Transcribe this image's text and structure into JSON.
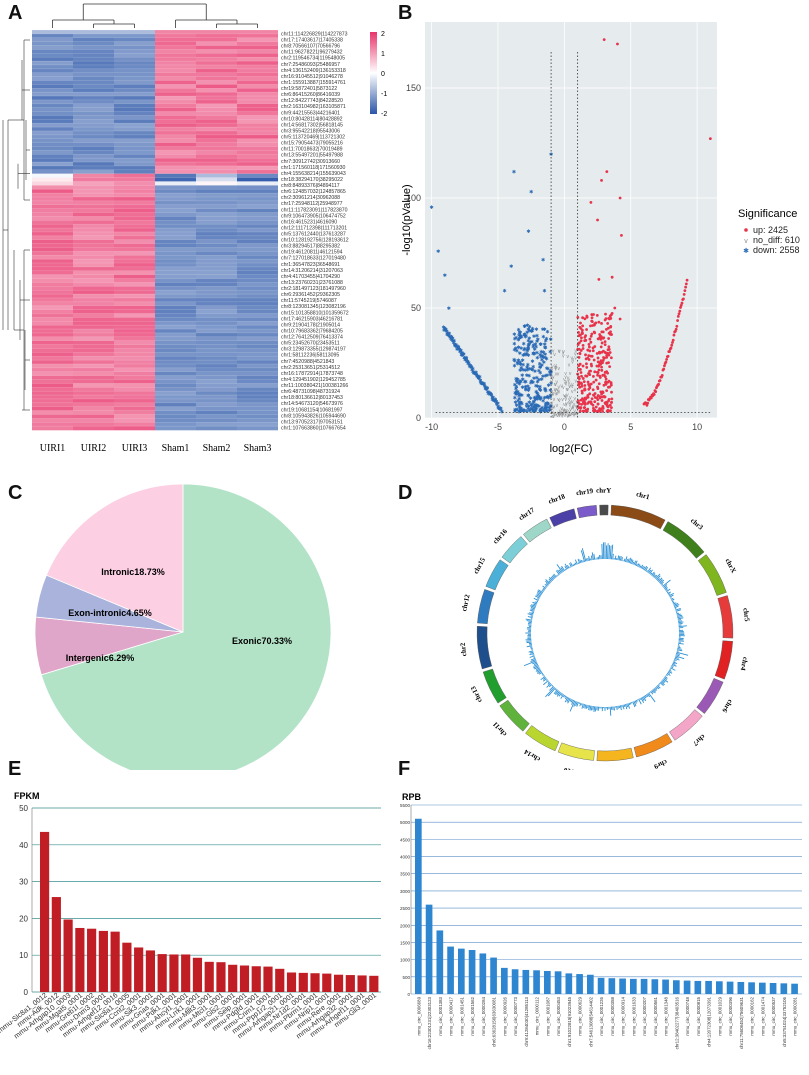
{
  "panel_labels": {
    "a": "A",
    "b": "B",
    "c": "C",
    "d": "D",
    "e": "E",
    "f": "F"
  },
  "colors": {
    "heat_low": "#2b56a8",
    "heat_mid": "#ffffff",
    "heat_high": "#e8336b",
    "volcano_up": "#e8334a",
    "volcano_nodiff": "#8c8c8c",
    "volcano_down": "#2a6ab5",
    "volcano_bg": "#e6ebed",
    "bar_e": "#c01d24",
    "bar_f": "#2e86d1",
    "grid_e": "#3a8f8f",
    "grid_f": "#5a8fc8"
  },
  "chart_data": [
    {
      "id": "A",
      "type": "heatmap",
      "title": "",
      "columns": [
        "UIRI1",
        "UIRI2",
        "UIRI3",
        "Sham1",
        "Sham2",
        "Sham3"
      ],
      "row_labels": [
        "chr11:114226829|114227873",
        "chr17:17403617|17405338",
        "chr8:70566107|70566796",
        "chr11:96278221|96279432",
        "chr2:119546734|119548005",
        "chr7:25486093|25486957",
        "chr4:136152409|136153318",
        "chr16:91045512|91046278",
        "chr1:155913887|155914761",
        "chr19:5872401|5873122",
        "chr6:86415260|86416039",
        "chr12:84227743|84228520",
        "chr2:163104982|163105871",
        "chr9:44215563|44216401",
        "chr10:80428114|80428892",
        "chr14:56817302|56818145",
        "chr3:95542218|95543006",
        "chr5:113720469|113721302",
        "chr15:79054473|79055216",
        "chr11:70018632|70019489",
        "chr13:55497201|55497988",
        "chr7:30912742|30913660",
        "chr1:171560118|171560930",
        "chr4:155638214|155639043",
        "chr18:38294170|38295022",
        "chr8:84893376|84894117",
        "chr6:124857032|124857865",
        "chr2:30961214|30962088",
        "chr17:25948112|25948977",
        "chr11:117823091|117823870",
        "chr9:106473905|106474752",
        "chr16:4615231|4616090",
        "chr12:111712398|111713201",
        "chr5:137612440|137613287",
        "chr10:128192756|128193612",
        "chr3:88294517|88295382",
        "chr19:46120811|46121594",
        "chr7:127018633|127019480",
        "chr1:36547823|36548691",
        "chr14:31206214|31207063",
        "chr4:41703455|41704290",
        "chr13:23760231|23761088",
        "chr2:181497123|181497960",
        "chr6:29361452|29362305",
        "chr11:5745219|5746087",
        "chr8:123081345|123082196",
        "chr15:101358810|101359672",
        "chr17:46215903|46216781",
        "chr9:21904178|21905014",
        "chr10:79683362|79684205",
        "chr12:76412509|76413374",
        "chr5:23452670|23453511",
        "chr3:129873355|129874197",
        "chr1:58112236|58113095",
        "chr7:4520988|4521843",
        "chr2:25313651|25314512",
        "chr16:17872914|17873748",
        "chr4:129451902|129452785",
        "chr11:100380421|100381266",
        "chr6:48731098|48731924",
        "chr18:80136612|80137453",
        "chr14:54673120|54673976",
        "chr19:10681154|10681997",
        "chr8:105943826|105944690",
        "chr13:97052317|97053151",
        "chr1:107663860|107667654"
      ],
      "cluster_a_rows": 37,
      "cluster_b_rows": 66,
      "scale": {
        "min": -2,
        "max": 2,
        "ticks": [
          "2",
          "1",
          "0",
          "-1",
          "-2"
        ]
      }
    },
    {
      "id": "B",
      "type": "scatter",
      "title": "",
      "xlabel": "log2(FC)",
      "ylabel": "-log10(pValue)",
      "xlim": [
        -10.5,
        11.5
      ],
      "ylim": [
        0,
        180
      ],
      "xticks": [
        "-10",
        "-5",
        "0",
        "5",
        "10"
      ],
      "yticks": [
        "0",
        "50",
        "100",
        "150"
      ],
      "legend_title": "Significance",
      "series": [
        {
          "name": "up: 2425",
          "group": "up"
        },
        {
          "name": "no_diff: 610",
          "group": "no_diff"
        },
        {
          "name": "down: 2558",
          "group": "down"
        }
      ],
      "thresholds": {
        "x": [
          -1,
          1
        ],
        "y": 2.5
      },
      "outliers_up": [
        [
          3,
          172
        ],
        [
          4,
          170
        ],
        [
          11,
          127
        ],
        [
          3.2,
          112
        ],
        [
          2.8,
          108
        ],
        [
          4.2,
          100
        ],
        [
          2,
          98
        ],
        [
          2.5,
          90
        ],
        [
          4.3,
          83
        ],
        [
          2.6,
          63
        ],
        [
          3.6,
          64
        ],
        [
          3.8,
          50
        ],
        [
          4.2,
          45
        ],
        [
          3.4,
          45
        ]
      ],
      "outliers_down": [
        [
          -1,
          120
        ],
        [
          -3.8,
          112
        ],
        [
          -2.5,
          103
        ],
        [
          -10,
          96
        ],
        [
          -2.7,
          85
        ],
        [
          -9.5,
          76
        ],
        [
          -1.6,
          72
        ],
        [
          -4,
          69
        ],
        [
          -9,
          65
        ],
        [
          -1.5,
          58
        ],
        [
          -8.7,
          50
        ],
        [
          -4.5,
          58
        ]
      ]
    },
    {
      "id": "C",
      "type": "pie",
      "title": "",
      "slices": [
        {
          "label": "Exonic70.33%",
          "value": 70.33,
          "color": "#b2e3c7"
        },
        {
          "label": "Intergenic6.29%",
          "value": 6.29,
          "color": "#e0a6c9"
        },
        {
          "label": "Exon-intronic4.65%",
          "value": 4.65,
          "color": "#a9b3dc"
        },
        {
          "label": "Intronic18.73%",
          "value": 18.73,
          "color": "#fccfe3"
        }
      ]
    },
    {
      "id": "D",
      "type": "circos",
      "title": "",
      "chromosomes": [
        {
          "name": "chr1",
          "color": "#8a4b16"
        },
        {
          "name": "chr3",
          "color": "#3f7f1c"
        },
        {
          "name": "chrX",
          "color": "#7fb51e"
        },
        {
          "name": "chr5",
          "color": "#e63b3b"
        },
        {
          "name": "chr4",
          "color": "#e02222"
        },
        {
          "name": "chr6",
          "color": "#9b59b6"
        },
        {
          "name": "chr7",
          "color": "#f4a6c8"
        },
        {
          "name": "chr9",
          "color": "#f08a1a"
        },
        {
          "name": "chr8",
          "color": "#f5b51e"
        },
        {
          "name": "chr10",
          "color": "#e6e44a"
        },
        {
          "name": "chr14",
          "color": "#b8d62f"
        },
        {
          "name": "chr11",
          "color": "#5fb33d"
        },
        {
          "name": "chr13",
          "color": "#229e2e"
        },
        {
          "name": "chr2",
          "color": "#1f4e8c"
        },
        {
          "name": "chr12",
          "color": "#2f7bc0"
        },
        {
          "name": "chr15",
          "color": "#4bb0d8"
        },
        {
          "name": "chr16",
          "color": "#7ccfd6"
        },
        {
          "name": "chr17",
          "color": "#9ed6c8"
        },
        {
          "name": "chr18",
          "color": "#4b3fa8"
        },
        {
          "name": "chr19",
          "color": "#7b5bc9"
        },
        {
          "name": "chrY",
          "color": "#4a4a4a"
        }
      ]
    },
    {
      "id": "E",
      "type": "bar",
      "title": "",
      "ylabel": "FPKM",
      "ylim": [
        0,
        50
      ],
      "yticks": [
        "0",
        "10",
        "20",
        "30",
        "40",
        "50"
      ],
      "categories": [
        "mmu-Slc8a1_0012",
        "mmu-Adk_0012",
        "mmu-Arhgap10_0003",
        "mmu-Mgat5_0001",
        "mmu-Greb1l_0002",
        "mmu-Dnm3_0001",
        "mmu-Arhgef12_0016",
        "mmu-Slc8a1_0005",
        "mmu-Ccnt2_0001",
        "mmu-Sik3_0001",
        "mmu-Gnas_0001",
        "mmu-Pdk1_0001",
        "mmu-Ahcyl1_0001",
        "mmu-Lrrk1_0001",
        "mmu-Mllt3_0001",
        "mmu-Mtcl1_0001",
        "mmu-Gls2_0001",
        "mmu-Selp_0001",
        "mmu-Pdgfd_0001",
        "mmu-Crim1_0001",
        "mmu-Ppp1r2_0001",
        "mmu-Arhgap21_0001",
        "mmu-Nr1d2_0001",
        "mmu-Pbrm1_0001",
        "mmu-Nrip1_0001",
        "mmu-Rere_0001",
        "mmu-Arhgap32_0001",
        "mmu-Arhgef11_0001",
        "mmu-Gli3_0001"
      ],
      "tick_labels_shown": [
        "mmu-Slc8a1_0012",
        "mmu-Adk_0012",
        "mmu-Arhgap10_0003",
        "mmu-Mgat5_0001",
        "mmu-Greb1l_0002",
        "mmu-Dnm3_0001",
        "mmu-Arhgef12_0016",
        "mmu-Slc8a1_0005",
        "mmu-Ccnt2_0001",
        "mmu-Sik3_0001",
        "mmu-Gnas_0001",
        "mmu-Pdk1_0001",
        "mmu-Ahcyl1_0001",
        "mmu-Lrrk1_0001",
        "mmu-Mllt3_0001",
        "mmu-Mtcl1_0001",
        "mmu-Gls2_0001",
        "mmu-Selp_0001",
        "mmu-Pdgfd_0001",
        "mmu-Crim1_0001",
        "mmu-Ppp1r2_0001",
        "mmu-Arhgap21_0001",
        "mmu-Nr1d2_0001",
        "mmu-Pbrm1_0001",
        "mmu-Nrip1_0001",
        "mmu-Rere_0001",
        "mmu-Arhgap32_0001",
        "mmu-Arhgef11_0001",
        "mmu-Gli3_0001"
      ],
      "values": [
        43.5,
        25.8,
        19.7,
        17.4,
        17.2,
        16.6,
        16.4,
        13.4,
        12.1,
        11.3,
        10.3,
        10.2,
        10.2,
        9.3,
        8.2,
        8.1,
        7.4,
        7.2,
        7.0,
        6.9,
        6.3,
        5.3,
        5.2,
        5.1,
        5.0,
        4.7,
        4.6,
        4.5,
        4.4
      ]
    },
    {
      "id": "F",
      "type": "bar",
      "title": "",
      "ylabel": "RPB",
      "ylim": [
        0,
        5500
      ],
      "yticks": [
        "0",
        "500",
        "1000",
        "1500",
        "2000",
        "2500",
        "3000",
        "3500",
        "4000",
        "4500",
        "5000",
        "5500"
      ],
      "categories": [
        "mmu_circ_0006689",
        "chr16:22301231|22303123",
        "mmu_circ_0001383",
        "mmu_circ_0000417",
        "mmu_circ_0001451",
        "mmu_circ_0001562",
        "mmu_circ_0000284",
        "chr6:63628156|63630081",
        "mmu_circ_0000926",
        "mmu_circ_0000773",
        "chr9:41284030|41285113",
        "mmu_circ_0000112",
        "mmu_circ_0001087",
        "mmu_circ_0000453",
        "chr1:91022815|91023945",
        "mmu_circ_0000629",
        "chr7:54613088|54614402",
        "mmu_circ_0001226",
        "mmu_circ_0000358",
        "mmu_circ_0000914",
        "mmu_circ_0001633",
        "mmu_circ_0000207",
        "mmu_circ_0000561",
        "mmu_circ_0001348",
        "chr12:38402277|38403516",
        "mmu_circ_0000748",
        "mmu_circ_0000815",
        "chr4:12072308|12073391",
        "mmu_circ_0001029",
        "mmu_circ_0000396",
        "chr11:75608452|75609631",
        "mmu_circ_0000162",
        "mmu_circ_0001474",
        "mmu_circ_0000537",
        "chr5:33751024|33752106",
        "mmu_circ_0000281"
      ],
      "values": [
        5100,
        2600,
        1850,
        1380,
        1320,
        1280,
        1180,
        1060,
        760,
        720,
        700,
        690,
        670,
        660,
        600,
        580,
        560,
        470,
        460,
        450,
        440,
        440,
        430,
        420,
        400,
        390,
        380,
        380,
        370,
        360,
        350,
        340,
        330,
        320,
        310,
        300
      ]
    }
  ]
}
